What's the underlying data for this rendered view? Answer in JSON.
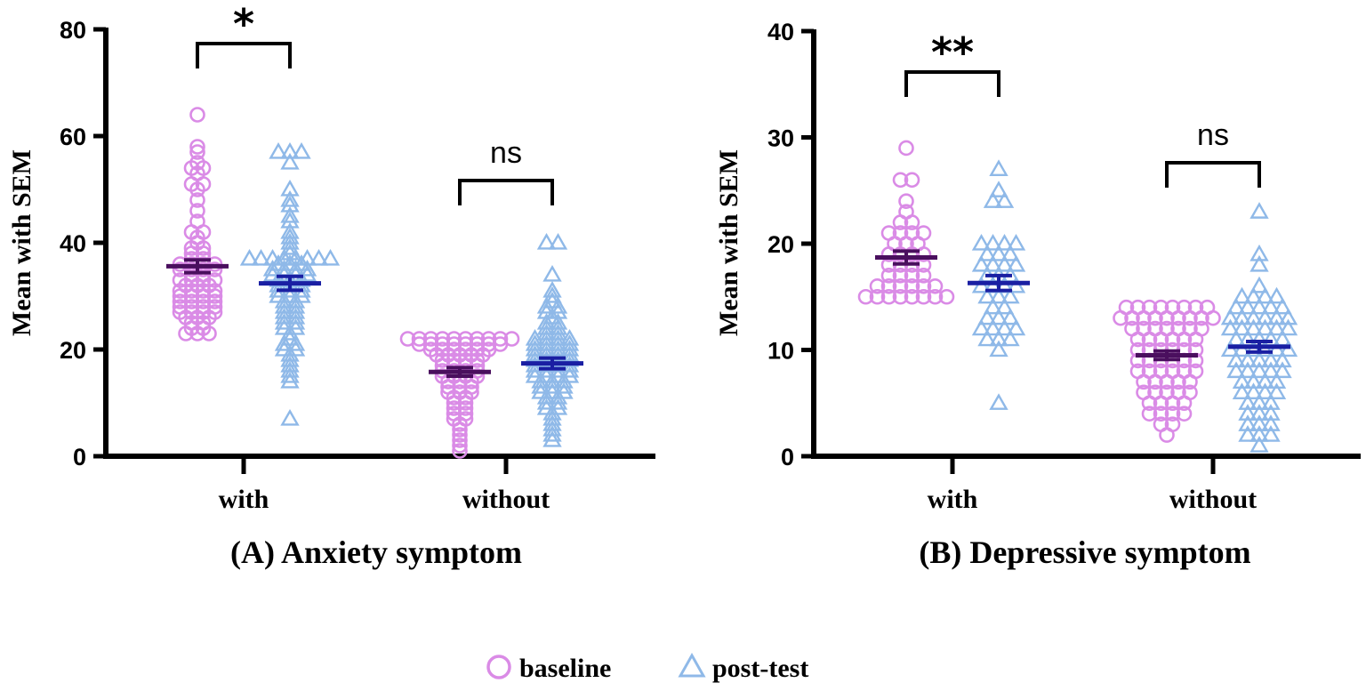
{
  "figure": {
    "legend": [
      {
        "name": "baseline",
        "marker": "circle",
        "color": "#DA8BE6"
      },
      {
        "name": "post-test",
        "marker": "triangle",
        "color": "#8FB9E8"
      }
    ],
    "mean_colors": {
      "baseline": "#4A0F5E",
      "post-test": "#1A1FA3"
    }
  },
  "chart_data": [
    {
      "type": "scatter",
      "title": "(A) Anxiety symptom",
      "xlabel": "",
      "ylabel": "Mean with SEM",
      "ylim": [
        0,
        80
      ],
      "yticks": [
        0,
        20,
        40,
        60,
        80
      ],
      "categories": [
        "with",
        "without"
      ],
      "series": [
        {
          "name": "baseline",
          "group": "with",
          "mean": 35.6,
          "sem": 1.2,
          "values": [
            64,
            58,
            57,
            55,
            54,
            54,
            53,
            51,
            51,
            50,
            48,
            46,
            44,
            42,
            42,
            41,
            40,
            39,
            39,
            38,
            38,
            37,
            37,
            36,
            36,
            36,
            36,
            35,
            35,
            35,
            35,
            34,
            34,
            33,
            33,
            33,
            33,
            32,
            32,
            32,
            31,
            31,
            31,
            31,
            30,
            30,
            30,
            30,
            29,
            29,
            29,
            29,
            28,
            28,
            28,
            28,
            27,
            27,
            27,
            27,
            26,
            26,
            26,
            25,
            25,
            24,
            24,
            23,
            23,
            23
          ]
        },
        {
          "name": "post-test",
          "group": "with",
          "mean": 32.4,
          "sem": 1.3,
          "values": [
            57,
            57,
            57,
            55,
            50,
            48,
            47,
            45,
            44,
            42,
            41,
            40,
            39,
            38,
            37,
            37,
            37,
            37,
            37,
            37,
            37,
            37,
            36,
            36,
            36,
            35,
            35,
            35,
            35,
            34,
            34,
            34,
            34,
            33,
            33,
            33,
            32,
            32,
            32,
            31,
            31,
            31,
            30,
            30,
            30,
            29,
            29,
            28,
            28,
            27,
            27,
            26,
            26,
            25,
            25,
            24,
            24,
            23,
            22,
            21,
            21,
            20,
            20,
            19,
            18,
            17,
            16,
            15,
            14,
            7
          ]
        },
        {
          "name": "baseline",
          "group": "without",
          "mean": 15.8,
          "sem": 0.8,
          "values": [
            22,
            22,
            22,
            22,
            22,
            22,
            22,
            22,
            22,
            22,
            21,
            21,
            21,
            21,
            21,
            21,
            21,
            21,
            20,
            20,
            20,
            20,
            20,
            20,
            19,
            19,
            19,
            19,
            19,
            18,
            18,
            18,
            18,
            17,
            17,
            17,
            17,
            16,
            16,
            16,
            16,
            15,
            15,
            15,
            15,
            14,
            14,
            14,
            13,
            13,
            13,
            12,
            12,
            12,
            11,
            11,
            10,
            10,
            9,
            9,
            8,
            8,
            7,
            7,
            6,
            5,
            4,
            3,
            2,
            1
          ]
        },
        {
          "name": "post-test",
          "group": "without",
          "mean": 17.4,
          "sem": 1.0,
          "values": [
            40,
            40,
            34,
            31,
            30,
            29,
            28,
            28,
            27,
            27,
            26,
            25,
            25,
            24,
            24,
            23,
            23,
            22,
            22,
            22,
            22,
            21,
            21,
            21,
            21,
            20,
            20,
            20,
            20,
            19,
            19,
            19,
            19,
            18,
            18,
            18,
            18,
            17,
            17,
            17,
            17,
            16,
            16,
            16,
            16,
            15,
            15,
            15,
            15,
            14,
            14,
            14,
            13,
            13,
            13,
            12,
            12,
            12,
            11,
            11,
            10,
            10,
            9,
            9,
            8,
            7,
            6,
            5,
            4,
            3
          ]
        }
      ],
      "annotations": [
        {
          "group": "with",
          "label": "*"
        },
        {
          "group": "without",
          "label": "ns"
        }
      ]
    },
    {
      "type": "scatter",
      "title": "(B) Depressive symptom",
      "xlabel": "",
      "ylabel": "Mean with SEM",
      "ylim": [
        0,
        40
      ],
      "yticks": [
        0,
        10,
        20,
        30,
        40
      ],
      "categories": [
        "with",
        "without"
      ],
      "series": [
        {
          "name": "baseline",
          "group": "with",
          "mean": 18.7,
          "sem": 0.6,
          "values": [
            29,
            26,
            26,
            24,
            23,
            22,
            22,
            21,
            21,
            21,
            21,
            20,
            20,
            20,
            19,
            19,
            19,
            19,
            18,
            18,
            18,
            18,
            17,
            17,
            17,
            17,
            16,
            16,
            16,
            16,
            16,
            16,
            15,
            15,
            15,
            15,
            15,
            15,
            15,
            15
          ]
        },
        {
          "name": "post-test",
          "group": "with",
          "mean": 16.3,
          "sem": 0.7,
          "values": [
            27,
            25,
            24,
            24,
            20,
            20,
            20,
            20,
            19,
            19,
            19,
            18,
            18,
            18,
            18,
            17,
            17,
            17,
            16,
            16,
            16,
            16,
            15,
            15,
            15,
            14,
            14,
            13,
            13,
            13,
            12,
            12,
            12,
            12,
            11,
            11,
            11,
            10,
            5
          ]
        },
        {
          "name": "baseline",
          "group": "without",
          "mean": 9.5,
          "sem": 0.4,
          "values": [
            14,
            14,
            14,
            14,
            14,
            14,
            14,
            14,
            13,
            13,
            13,
            13,
            13,
            13,
            13,
            13,
            13,
            12,
            12,
            12,
            12,
            12,
            12,
            12,
            11,
            11,
            11,
            11,
            11,
            11,
            10,
            10,
            10,
            10,
            10,
            10,
            9,
            9,
            9,
            9,
            9,
            9,
            8,
            8,
            8,
            8,
            8,
            8,
            7,
            7,
            7,
            7,
            7,
            6,
            6,
            6,
            6,
            6,
            5,
            5,
            5,
            5,
            4,
            4,
            4,
            4,
            3,
            3,
            2
          ]
        },
        {
          "name": "post-test",
          "group": "without",
          "mean": 10.3,
          "sem": 0.5,
          "values": [
            23,
            19,
            18,
            16,
            15,
            15,
            15,
            15,
            14,
            14,
            14,
            14,
            14,
            13,
            13,
            13,
            13,
            13,
            13,
            12,
            12,
            12,
            12,
            12,
            12,
            11,
            11,
            11,
            11,
            11,
            10,
            10,
            10,
            10,
            10,
            10,
            9,
            9,
            9,
            9,
            9,
            8,
            8,
            8,
            8,
            8,
            7,
            7,
            7,
            7,
            6,
            6,
            6,
            6,
            5,
            5,
            5,
            4,
            4,
            4,
            3,
            3,
            3,
            2,
            2,
            2,
            1
          ]
        }
      ],
      "annotations": [
        {
          "group": "with",
          "label": "**"
        },
        {
          "group": "without",
          "label": "ns"
        }
      ]
    }
  ]
}
